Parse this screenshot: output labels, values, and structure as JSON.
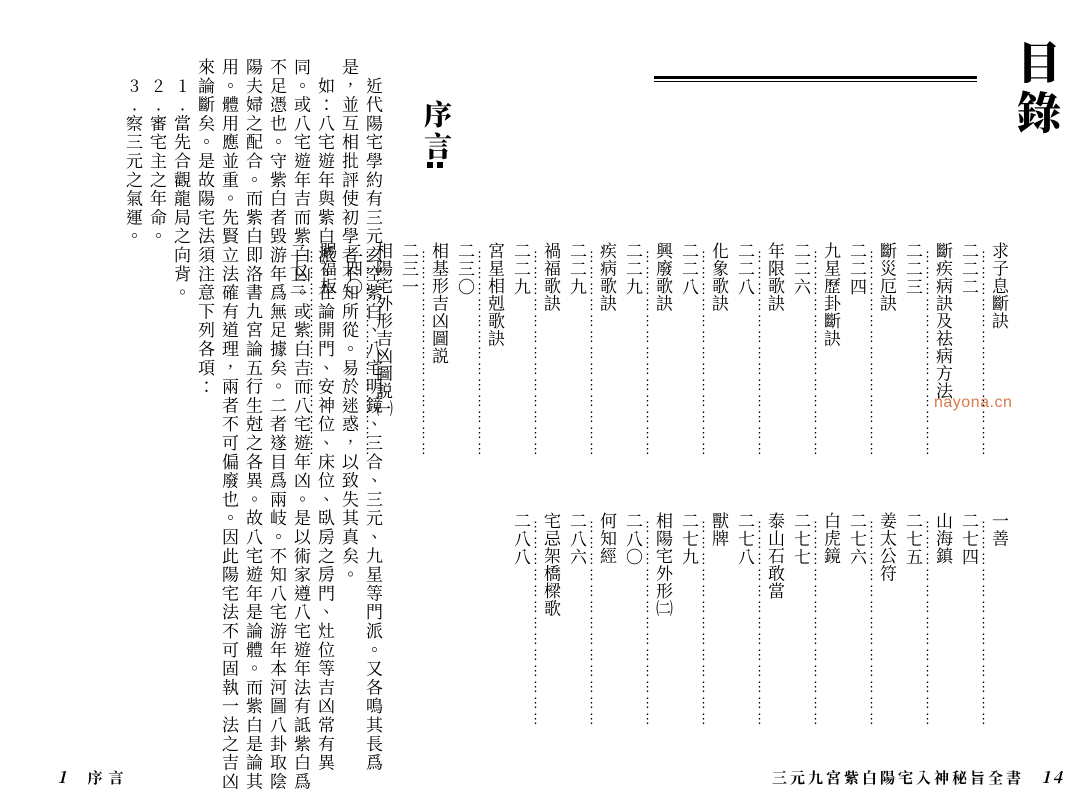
{
  "colors": {
    "text": "#000000",
    "bg": "#ffffff",
    "watermark": "#d97a4a"
  },
  "rightPage": {
    "title": "目錄",
    "footerText": "三元九宮紫白陽宅入神秘旨全書",
    "footerPage": "14",
    "tocTop": [
      {
        "label": "求子息斷訣",
        "page": "二二二"
      },
      {
        "label": "斷疾病訣及祛病方法",
        "page": "二二三"
      },
      {
        "label": "斷災厄訣",
        "page": "二二四"
      },
      {
        "label": "九星歷卦斷訣",
        "page": "二二六"
      },
      {
        "label": "年限歌訣",
        "page": "二二八"
      },
      {
        "label": "化象歌訣",
        "page": "二二八"
      },
      {
        "label": "興廢歌訣",
        "page": "二二九"
      },
      {
        "label": "疾病歌訣",
        "page": "二二九"
      },
      {
        "label": "禍福歌訣",
        "page": "二二九"
      },
      {
        "label": "宮星相剋歌訣",
        "page": "二三〇"
      },
      {
        "label": "相基形吉凶圖説",
        "page": "二三一"
      },
      {
        "label": "相陽宅外形吉凶圖説㈠",
        "page": "二四〇"
      },
      {
        "label": "賜福板",
        "page": "二七三"
      }
    ],
    "tocBottom": [
      {
        "label": "一善",
        "page": "二七四"
      },
      {
        "label": "山海鎮",
        "page": "二七五"
      },
      {
        "label": "姜太公符",
        "page": "二七六"
      },
      {
        "label": "白虎鏡",
        "page": "二七七"
      },
      {
        "label": "泰山石敢當",
        "page": "二七八"
      },
      {
        "label": "獸牌",
        "page": "二七九"
      },
      {
        "label": "相陽宅外形㈡",
        "page": "二八〇"
      },
      {
        "label": "何知經",
        "page": "二八六"
      },
      {
        "label": "宅忌架橋樑歌",
        "page": "二八八"
      }
    ]
  },
  "watermark": "nayona.cn",
  "leftPage": {
    "title": "序言",
    "footerText": "序言",
    "footerPage": "1",
    "columns": [
      "　近代陽宅學約有三元玄空紫白、八宅明鏡、三合、三元、九星等門派。又各鳴其長爲",
      "是，並互相批評使初學者不知所從。易於迷惑，以致失其真矣。",
      "　如：八宅遊年與紫白派。在論開門、安神位、床位、臥房之房門、灶位等吉凶常有異",
      "同。或八宅遊年吉而紫白凶。或紫白吉而八宅遊年凶。是以術家遵八宅遊年法有詆紫白爲",
      "不足憑也。守紫白者毀游年爲無足據矣。二者遂目爲兩岐。不知八宅游年本河圖八卦取陰",
      "陽夫婦之配合。而紫白即洛書九宮論五行生尅之各異。故八宅遊年是論體。而紫白是論其",
      "用。體用應並重。先賢立法確有道理，兩者不可偏廢也。因此陽宅法不可固執一法之吉凶",
      "來論斷矣。是故陽宅法須注意下列各項：",
      "　1.當先合觀龍局之向背。",
      "　2.審宅主之年命。",
      "　3.察三元之氣運。"
    ]
  }
}
